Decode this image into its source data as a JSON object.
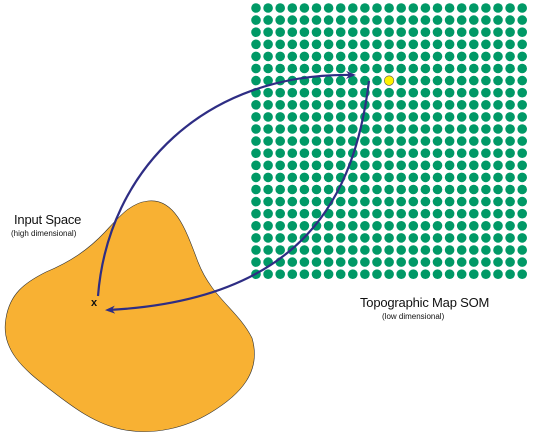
{
  "input_space": {
    "title": "Input Space",
    "subtitle": "(high dimensional)",
    "fill_color": "#F8B133",
    "input_marker": "x"
  },
  "som": {
    "title": "Topographic Map SOM",
    "subtitle": "(low dimensional)",
    "node_color": "#009966",
    "winner_color": "#FFF200",
    "grid_rows": 23,
    "grid_cols": 23,
    "winner_row": 6,
    "winner_col": 11
  },
  "arrow_color": "#2E2D84"
}
